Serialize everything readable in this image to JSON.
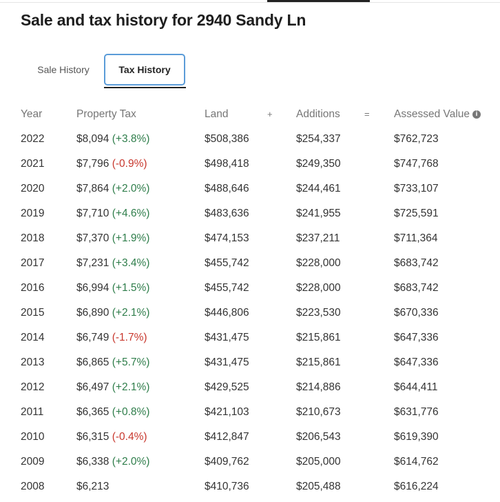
{
  "title": "Sale and tax history for 2940 Sandy Ln",
  "tabs": [
    {
      "label": "Sale History",
      "active": false
    },
    {
      "label": "Tax History",
      "active": true
    }
  ],
  "colors": {
    "positive": "#2e7d4a",
    "negative": "#c8372d",
    "tab_border": "#5a9bd8"
  },
  "table": {
    "headers": {
      "year": "Year",
      "tax": "Property Tax",
      "land": "Land",
      "plus": "+",
      "additions": "Additions",
      "equals": "=",
      "assessed": "Assessed Value",
      "info_icon": "info-icon"
    },
    "rows": [
      {
        "year": "2022",
        "tax": "$8,094",
        "change": "(+3.8%)",
        "land": "$508,386",
        "additions": "$254,337",
        "assessed": "$762,723"
      },
      {
        "year": "2021",
        "tax": "$7,796",
        "change": "(-0.9%)",
        "land": "$498,418",
        "additions": "$249,350",
        "assessed": "$747,768"
      },
      {
        "year": "2020",
        "tax": "$7,864",
        "change": "(+2.0%)",
        "land": "$488,646",
        "additions": "$244,461",
        "assessed": "$733,107"
      },
      {
        "year": "2019",
        "tax": "$7,710",
        "change": "(+4.6%)",
        "land": "$483,636",
        "additions": "$241,955",
        "assessed": "$725,591"
      },
      {
        "year": "2018",
        "tax": "$7,370",
        "change": "(+1.9%)",
        "land": "$474,153",
        "additions": "$237,211",
        "assessed": "$711,364"
      },
      {
        "year": "2017",
        "tax": "$7,231",
        "change": "(+3.4%)",
        "land": "$455,742",
        "additions": "$228,000",
        "assessed": "$683,742"
      },
      {
        "year": "2016",
        "tax": "$6,994",
        "change": "(+1.5%)",
        "land": "$455,742",
        "additions": "$228,000",
        "assessed": "$683,742"
      },
      {
        "year": "2015",
        "tax": "$6,890",
        "change": "(+2.1%)",
        "land": "$446,806",
        "additions": "$223,530",
        "assessed": "$670,336"
      },
      {
        "year": "2014",
        "tax": "$6,749",
        "change": "(-1.7%)",
        "land": "$431,475",
        "additions": "$215,861",
        "assessed": "$647,336"
      },
      {
        "year": "2013",
        "tax": "$6,865",
        "change": "(+5.7%)",
        "land": "$431,475",
        "additions": "$215,861",
        "assessed": "$647,336"
      },
      {
        "year": "2012",
        "tax": "$6,497",
        "change": "(+2.1%)",
        "land": "$429,525",
        "additions": "$214,886",
        "assessed": "$644,411"
      },
      {
        "year": "2011",
        "tax": "$6,365",
        "change": "(+0.8%)",
        "land": "$421,103",
        "additions": "$210,673",
        "assessed": "$631,776"
      },
      {
        "year": "2010",
        "tax": "$6,315",
        "change": "(-0.4%)",
        "land": "$412,847",
        "additions": "$206,543",
        "assessed": "$619,390"
      },
      {
        "year": "2009",
        "tax": "$6,338",
        "change": "(+2.0%)",
        "land": "$409,762",
        "additions": "$205,000",
        "assessed": "$614,762"
      },
      {
        "year": "2008",
        "tax": "$6,213",
        "change": "",
        "land": "$410,736",
        "additions": "$205,488",
        "assessed": "$616,224"
      }
    ]
  }
}
